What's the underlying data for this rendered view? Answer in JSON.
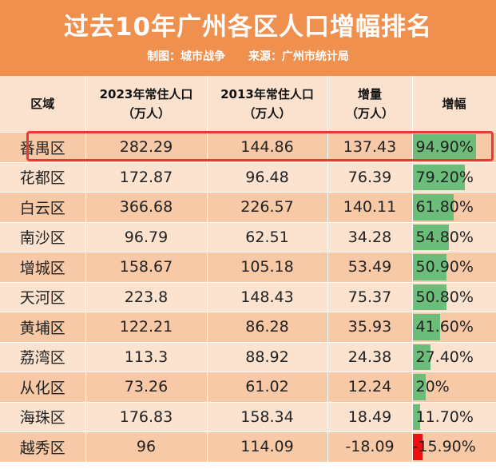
{
  "title": "过去10年广州各区人口增幅排名",
  "credit_map_label": "制图：城市战争",
  "credit_source_label": "来源：广州市统计局",
  "headers": {
    "district": "区域",
    "pop2023": "2023年常住人口\n（万人）",
    "pop2013": "2013年常住人口\n（万人）",
    "increase": "增量\n（万人）",
    "growth": "增幅"
  },
  "rows": [
    {
      "district": "番禺区",
      "pop2023": "282.29",
      "pop2013": "144.86",
      "increase": "137.43",
      "growth": "94.90%",
      "growth_value": 94.9
    },
    {
      "district": "花都区",
      "pop2023": "172.87",
      "pop2013": "96.48",
      "increase": "76.39",
      "growth": "79.20%",
      "growth_value": 79.2
    },
    {
      "district": "白云区",
      "pop2023": "366.68",
      "pop2013": "226.57",
      "increase": "140.11",
      "growth": "61.80%",
      "growth_value": 61.8
    },
    {
      "district": "南沙区",
      "pop2023": "96.79",
      "pop2013": "62.51",
      "increase": "34.28",
      "growth": "54.80%",
      "growth_value": 54.8
    },
    {
      "district": "增城区",
      "pop2023": "158.67",
      "pop2013": "105.18",
      "increase": "53.49",
      "growth": "50.90%",
      "growth_value": 50.9
    },
    {
      "district": "天河区",
      "pop2023": "223.8",
      "pop2013": "148.43",
      "increase": "75.37",
      "growth": "50.80%",
      "growth_value": 50.8
    },
    {
      "district": "黄埔区",
      "pop2023": "122.21",
      "pop2013": "86.28",
      "increase": "35.93",
      "growth": "41.60%",
      "growth_value": 41.6
    },
    {
      "district": "荔湾区",
      "pop2023": "113.3",
      "pop2013": "88.92",
      "increase": "24.38",
      "growth": "27.40%",
      "growth_value": 27.4
    },
    {
      "district": "从化区",
      "pop2023": "73.26",
      "pop2013": "61.02",
      "increase": "12.24",
      "growth": "20%",
      "growth_value": 20.0
    },
    {
      "district": "海珠区",
      "pop2023": "176.83",
      "pop2013": "158.34",
      "increase": "18.49",
      "growth": "11.70%",
      "growth_value": 11.7
    },
    {
      "district": "越秀区",
      "pop2023": "96",
      "pop2013": "114.09",
      "increase": "-18.09",
      "growth": "-15.90%",
      "growth_value": -15.9
    }
  ],
  "colors": {
    "banner": "#f0904f",
    "row_dark": "#f7c9a7",
    "row_light": "#fbe3d0",
    "bar_positive": "#6bbd79",
    "bar_negative": "#ee1111",
    "highlight_border": "#e83a34"
  }
}
